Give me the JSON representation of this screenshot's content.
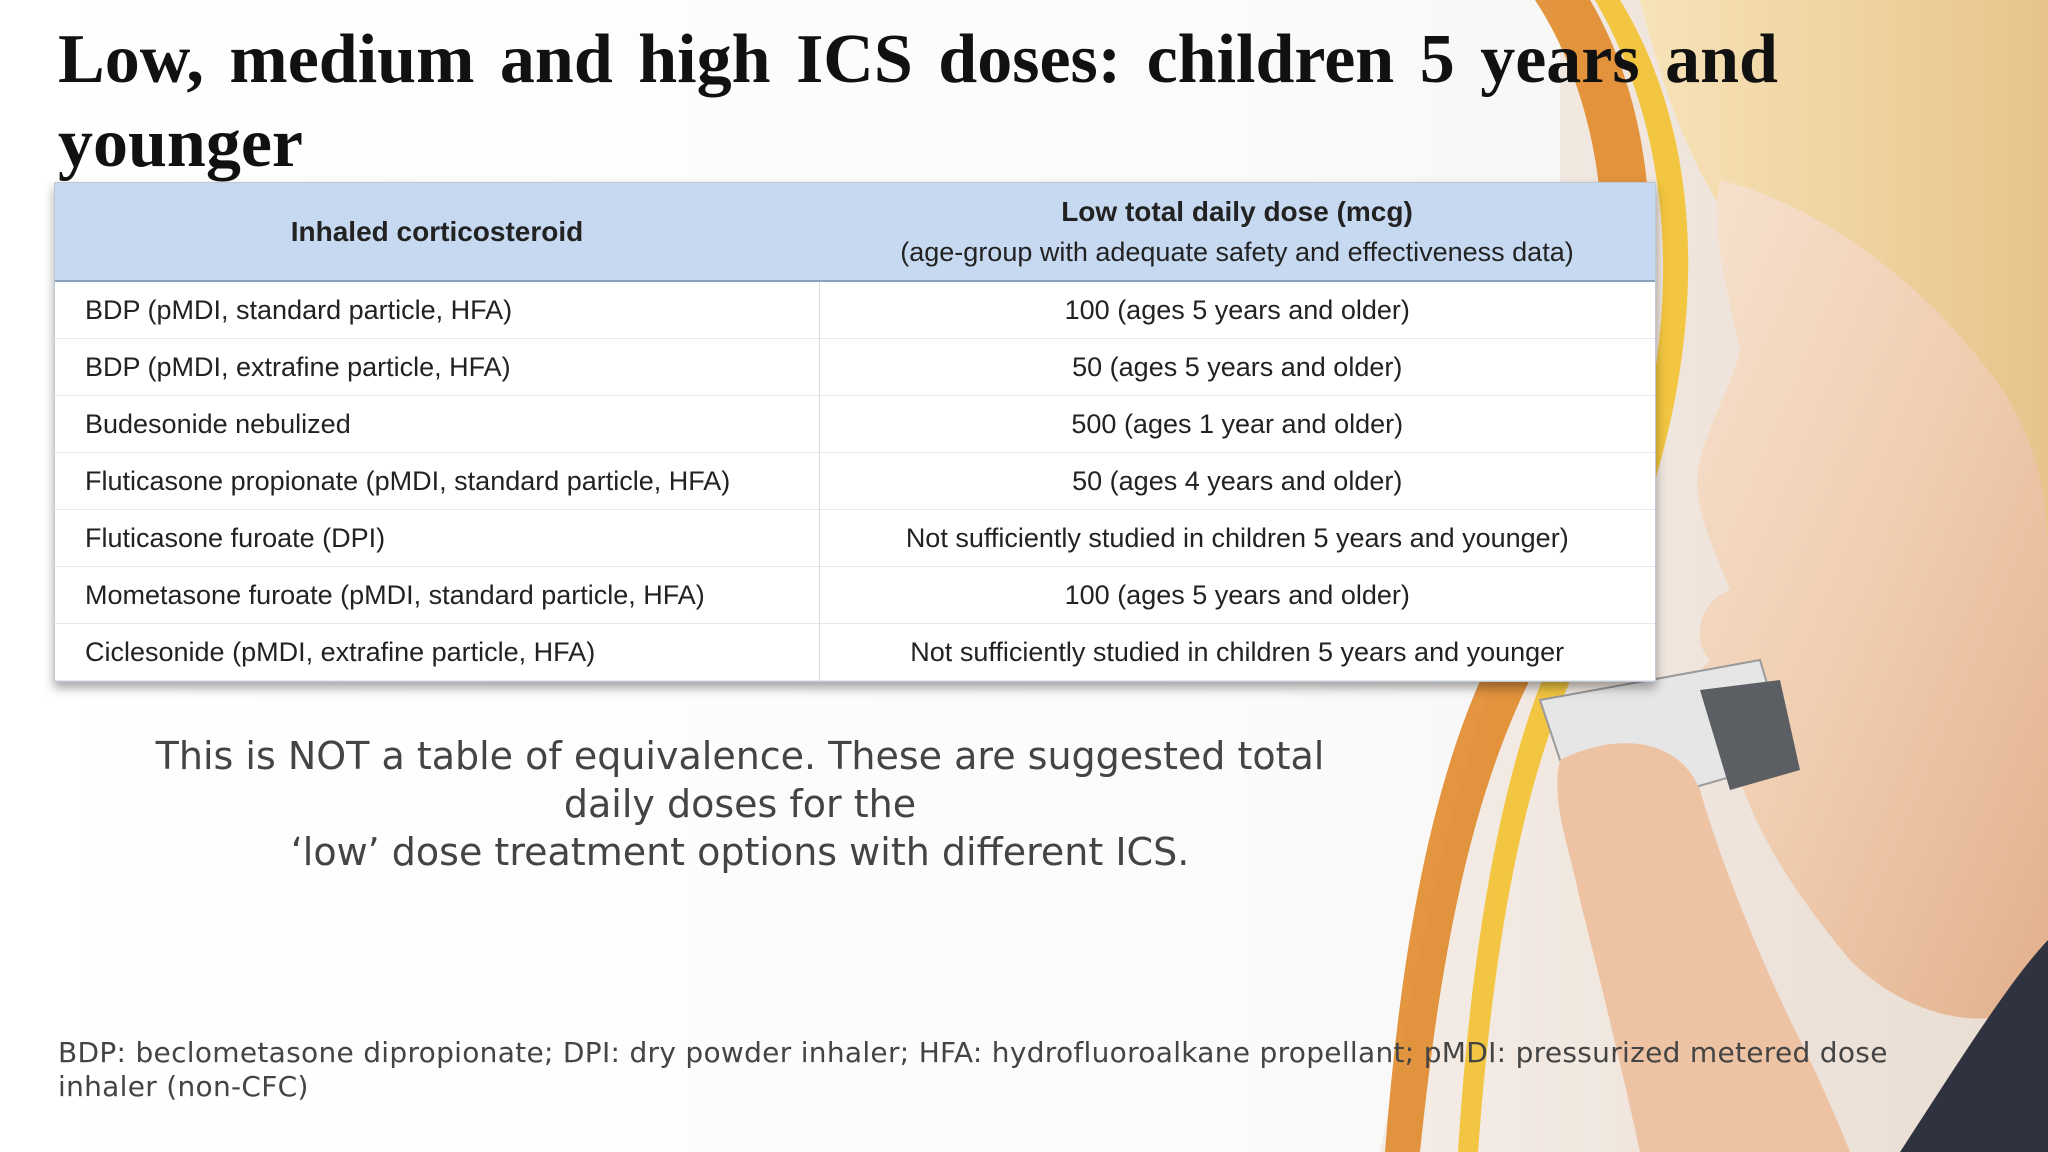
{
  "slide": {
    "title": "Low, medium and high ICS doses: children 5 years and younger"
  },
  "table": {
    "header": {
      "col1": "Inhaled corticosteroid",
      "col2_main": "Low total daily dose (mcg)",
      "col2_sub": "(age-group with adequate safety and effectiveness data)"
    },
    "rows": [
      {
        "drug": "BDP (pMDI, standard particle, HFA)",
        "dose": "100 (ages 5 years and older)"
      },
      {
        "drug": "BDP (pMDI, extrafine particle, HFA)",
        "dose": "50 (ages 5 years and older)"
      },
      {
        "drug": "Budesonide nebulized",
        "dose": "500 (ages 1 year and older)"
      },
      {
        "drug": "Fluticasone propionate (pMDI, standard particle, HFA)",
        "dose": "50 (ages 4 years and older)"
      },
      {
        "drug": "Fluticasone furoate (DPI)",
        "dose": "Not sufficiently studied in children 5 years and younger)"
      },
      {
        "drug": "Mometasone furoate (pMDI, standard particle, HFA)",
        "dose": "100 (ages 5 years and older)"
      },
      {
        "drug": "Ciclesonide (pMDI, extrafine particle, HFA)",
        "dose": "Not sufficiently studied in children 5 years and younger"
      }
    ]
  },
  "note": {
    "line1": "This is NOT a table of equivalence. These are suggested total",
    "line2": "daily doses for the",
    "line3": "‘low’ dose treatment options with different ICS."
  },
  "footnote": "BDP: beclometasone dipropionate; DPI: dry powder inhaler; HFA: hydrofluoroalkane propellant; pMDI: pressurized metered dose inhaler (non-CFC)",
  "colors": {
    "header_fill": "#c6d9f1",
    "title_text": "#111111",
    "body_text": "#444444",
    "accent_orange": "#e08a2a",
    "accent_yellow": "#f2c230"
  }
}
